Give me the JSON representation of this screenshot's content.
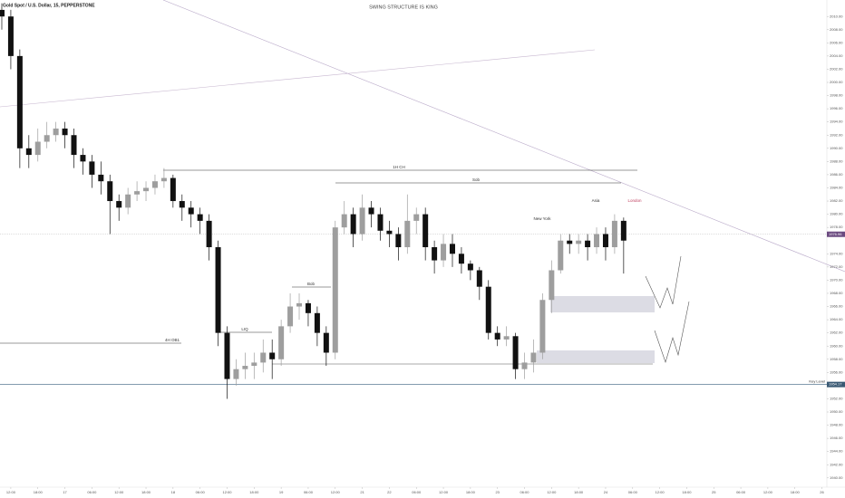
{
  "chart_data": {
    "type": "candlestick",
    "title": "Gold Spot / U.S. Dollar, 15, PEPPERSTONE",
    "subtitle": "SWING STRUCTURE IS KING",
    "up_color": "#9e9e9e",
    "down_color": "#111111",
    "xlim": [
      -2.4,
      181.1
    ],
    "ylim": [
      1938.6,
      2012.5
    ],
    "xticks": [
      {
        "value": 0,
        "label": "12:00"
      },
      {
        "value": 6,
        "label": "18:00"
      },
      {
        "value": 12,
        "label": "17"
      },
      {
        "value": 18,
        "label": "06:00"
      },
      {
        "value": 24,
        "label": "12:00"
      },
      {
        "value": 30,
        "label": "18:00"
      },
      {
        "value": 36,
        "label": "18"
      },
      {
        "value": 42,
        "label": "06:00"
      },
      {
        "value": 48,
        "label": "12:00"
      },
      {
        "value": 54,
        "label": "18:00"
      },
      {
        "value": 60,
        "label": "19"
      },
      {
        "value": 66,
        "label": "06:00"
      },
      {
        "value": 72,
        "label": "12:00"
      },
      {
        "value": 78,
        "label": "21"
      },
      {
        "value": 84,
        "label": "22"
      },
      {
        "value": 90,
        "label": "06:00"
      },
      {
        "value": 96,
        "label": "12:00"
      },
      {
        "value": 102,
        "label": "18:00"
      },
      {
        "value": 108,
        "label": "23"
      },
      {
        "value": 114,
        "label": "06:00"
      },
      {
        "value": 120,
        "label": "12:00"
      },
      {
        "value": 126,
        "label": "18:00"
      },
      {
        "value": 132,
        "label": "24"
      },
      {
        "value": 138,
        "label": "06:00"
      },
      {
        "value": 144,
        "label": "12:00"
      },
      {
        "value": 150,
        "label": "18:00"
      },
      {
        "value": 156,
        "label": "25"
      },
      {
        "value": 162,
        "label": "06:00"
      },
      {
        "value": 168,
        "label": "12:00"
      },
      {
        "value": 174,
        "label": "18:00"
      },
      {
        "value": 180,
        "label": "26"
      }
    ],
    "yticks": [
      {
        "value": 1940,
        "label": "1940.00"
      },
      {
        "value": 1942,
        "label": "1942.00"
      },
      {
        "value": 1944,
        "label": "1944.00"
      },
      {
        "value": 1946,
        "label": "1946.00"
      },
      {
        "value": 1948,
        "label": "1948.00"
      },
      {
        "value": 1950,
        "label": "1950.00"
      },
      {
        "value": 1952,
        "label": "1952.00"
      },
      {
        "value": 1956,
        "label": "1956.00"
      },
      {
        "value": 1958,
        "label": "1958.00"
      },
      {
        "value": 1960,
        "label": "1960.00"
      },
      {
        "value": 1962,
        "label": "1962.00"
      },
      {
        "value": 1964,
        "label": "1964.00"
      },
      {
        "value": 1966,
        "label": "1966.00"
      },
      {
        "value": 1968,
        "label": "1968.00"
      },
      {
        "value": 1970,
        "label": "1970.00"
      },
      {
        "value": 1972,
        "label": "1972.00"
      },
      {
        "value": 1974,
        "label": "1974.00"
      },
      {
        "value": 1978,
        "label": "1978.00"
      },
      {
        "value": 1980,
        "label": "1980.00"
      },
      {
        "value": 1982,
        "label": "1982.00"
      },
      {
        "value": 1984,
        "label": "1984.00"
      },
      {
        "value": 1986,
        "label": "1986.00"
      },
      {
        "value": 1988,
        "label": "1988.00"
      },
      {
        "value": 1990,
        "label": "1990.00"
      },
      {
        "value": 1992,
        "label": "1992.00"
      },
      {
        "value": 1994,
        "label": "1994.00"
      },
      {
        "value": 1996,
        "label": "1996.00"
      },
      {
        "value": 1998,
        "label": "1998.00"
      },
      {
        "value": 2000,
        "label": "2000.00"
      },
      {
        "value": 2002,
        "label": "2002.00"
      },
      {
        "value": 2004,
        "label": "2004.00"
      },
      {
        "value": 2006,
        "label": "2006.00"
      },
      {
        "value": 2008,
        "label": "2008.00"
      },
      {
        "value": 2010,
        "label": "2010.00"
      }
    ],
    "x": [
      -2,
      0,
      2,
      4,
      6,
      8,
      10,
      12,
      14,
      16,
      18,
      20,
      22,
      24,
      26,
      28,
      30,
      32,
      34,
      36,
      38,
      40,
      42,
      44,
      46,
      48,
      50,
      52,
      54,
      56,
      58,
      60,
      62,
      64,
      66,
      68,
      70,
      72,
      74,
      76,
      78,
      80,
      82,
      84,
      86,
      88,
      90,
      92,
      94,
      96,
      98,
      100,
      102,
      104,
      106,
      108,
      110,
      112,
      114,
      116,
      118,
      120,
      122,
      124,
      126,
      128,
      130,
      132,
      134,
      136
    ],
    "ohlc": [
      [
        2011,
        2012,
        2008,
        2010
      ],
      [
        2010,
        2011,
        2002,
        2004
      ],
      [
        2004,
        2005,
        1987,
        1990
      ],
      [
        1990,
        1992,
        1987,
        1989
      ],
      [
        1989,
        1993,
        1988,
        1991
      ],
      [
        1991,
        1994,
        1990,
        1992
      ],
      [
        1992,
        1994,
        1991,
        1993
      ],
      [
        1993,
        1994,
        1990,
        1992
      ],
      [
        1992,
        1993,
        1987,
        1989
      ],
      [
        1989,
        1990,
        1986,
        1988
      ],
      [
        1988,
        1989,
        1984,
        1986
      ],
      [
        1986,
        1988,
        1983,
        1985
      ],
      [
        1985,
        1986,
        1977,
        1982
      ],
      [
        1982,
        1983,
        1979,
        1981
      ],
      [
        1981,
        1984,
        1980,
        1983
      ],
      [
        1983,
        1985,
        1982,
        1983.5
      ],
      [
        1983.5,
        1985,
        1982,
        1984
      ],
      [
        1984,
        1986,
        1983,
        1985
      ],
      [
        1985,
        1987,
        1984,
        1985.5
      ],
      [
        1985.5,
        1986,
        1981,
        1982
      ],
      [
        1982,
        1983,
        1979,
        1981
      ],
      [
        1981,
        1982,
        1978,
        1980
      ],
      [
        1980,
        1981,
        1977,
        1979
      ],
      [
        1979,
        1980,
        1973,
        1975
      ],
      [
        1975,
        1976,
        1960,
        1962
      ],
      [
        1962,
        1963,
        1952,
        1955
      ],
      [
        1955,
        1958,
        1954,
        1956.5
      ],
      [
        1956.5,
        1959,
        1955,
        1957
      ],
      [
        1957,
        1959,
        1955,
        1957.5
      ],
      [
        1957.5,
        1961,
        1956,
        1959
      ],
      [
        1959,
        1961,
        1955,
        1958
      ],
      [
        1958,
        1964,
        1957,
        1963
      ],
      [
        1963,
        1968,
        1962,
        1966
      ],
      [
        1966,
        1968,
        1964,
        1966.5
      ],
      [
        1966.5,
        1967,
        1963,
        1965
      ],
      [
        1965,
        1966,
        1960,
        1962
      ],
      [
        1962,
        1963,
        1957,
        1959
      ],
      [
        1959,
        1979,
        1958,
        1978
      ],
      [
        1978,
        1982,
        1977,
        1980
      ],
      [
        1980,
        1981,
        1975,
        1977
      ],
      [
        1977,
        1983,
        1976,
        1981
      ],
      [
        1981,
        1982,
        1978,
        1980
      ],
      [
        1980,
        1981,
        1976,
        1977.5
      ],
      [
        1977.5,
        1979,
        1975,
        1977
      ],
      [
        1977,
        1978,
        1973,
        1975
      ],
      [
        1975,
        1983,
        1974,
        1979
      ],
      [
        1979,
        1981,
        1977,
        1980
      ],
      [
        1980,
        1981,
        1973,
        1975
      ],
      [
        1975,
        1976,
        1971,
        1973
      ],
      [
        1973,
        1977,
        1972,
        1975.5
      ],
      [
        1975.5,
        1977,
        1972,
        1974
      ],
      [
        1974,
        1975,
        1971,
        1972.5
      ],
      [
        1972.5,
        1973,
        1970,
        1971.5
      ],
      [
        1971.5,
        1972,
        1967,
        1969
      ],
      [
        1969,
        1970,
        1961,
        1962
      ],
      [
        1962,
        1963,
        1960,
        1961
      ],
      [
        1961,
        1963,
        1960,
        1961.5
      ],
      [
        1961.5,
        1962,
        1955,
        1956.5
      ],
      [
        1956.5,
        1959,
        1955,
        1957.5
      ],
      [
        1957.5,
        1961,
        1956,
        1959
      ],
      [
        1959,
        1968,
        1958,
        1967
      ],
      [
        1967,
        1973,
        1965,
        1971.5
      ],
      [
        1971.5,
        1977,
        1971,
        1976
      ],
      [
        1976,
        1977,
        1974,
        1975.5
      ],
      [
        1975.5,
        1977,
        1974,
        1976
      ],
      [
        1976,
        1977,
        1973,
        1975
      ],
      [
        1975,
        1978,
        1974,
        1977
      ],
      [
        1977,
        1978,
        1973,
        1975
      ],
      [
        1975,
        1980,
        1974,
        1979
      ],
      [
        1979,
        1979.5,
        1971,
        1976
      ]
    ],
    "current_price": 1976.96,
    "key_level": {
      "label": "Key Level",
      "value": 1954.17
    },
    "annotations": [
      "1H CH",
      "Sob",
      "Bob",
      "LIQ",
      "4H OB1",
      "Asia",
      "London",
      "New York"
    ]
  }
}
